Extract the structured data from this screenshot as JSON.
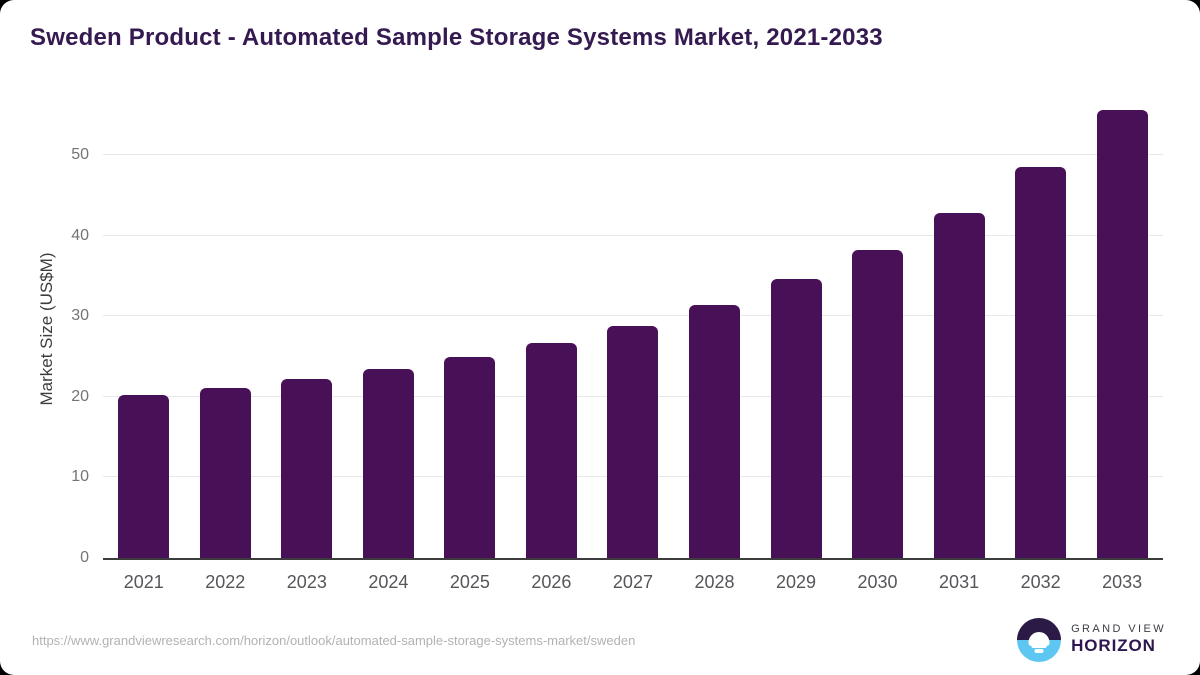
{
  "footer": {
    "source_url": "https://www.grandviewresearch.com/horizon/outlook/automated-sample-storage-systems-market/sweden",
    "brand_top": "GRAND VIEW",
    "brand_bottom": "HORIZON"
  },
  "colors": {
    "bar": "#481157",
    "title_text": "#351a52",
    "axis_line": "#3c3c3c",
    "gridline": "#e7e7e7",
    "logo_dark": "#2b1a45",
    "logo_blue": "#5ec7f1"
  },
  "chart_data": {
    "type": "bar",
    "title": "Sweden Product - Automated Sample Storage Systems Market, 2021-2033",
    "categories": [
      "2021",
      "2022",
      "2023",
      "2024",
      "2025",
      "2026",
      "2027",
      "2028",
      "2029",
      "2030",
      "2031",
      "2032",
      "2033"
    ],
    "values": [
      20.3,
      21.1,
      22.2,
      23.5,
      25.0,
      26.7,
      28.8,
      31.4,
      34.7,
      38.2,
      42.8,
      48.5,
      55.6
    ],
    "series_name": "Market Size",
    "xlabel": "",
    "ylabel": "Market Size (US$M)",
    "ylim": [
      0,
      57
    ],
    "yticks": [
      0,
      10,
      20,
      30,
      40,
      50
    ],
    "grid": "horizontal",
    "legend": "none"
  }
}
